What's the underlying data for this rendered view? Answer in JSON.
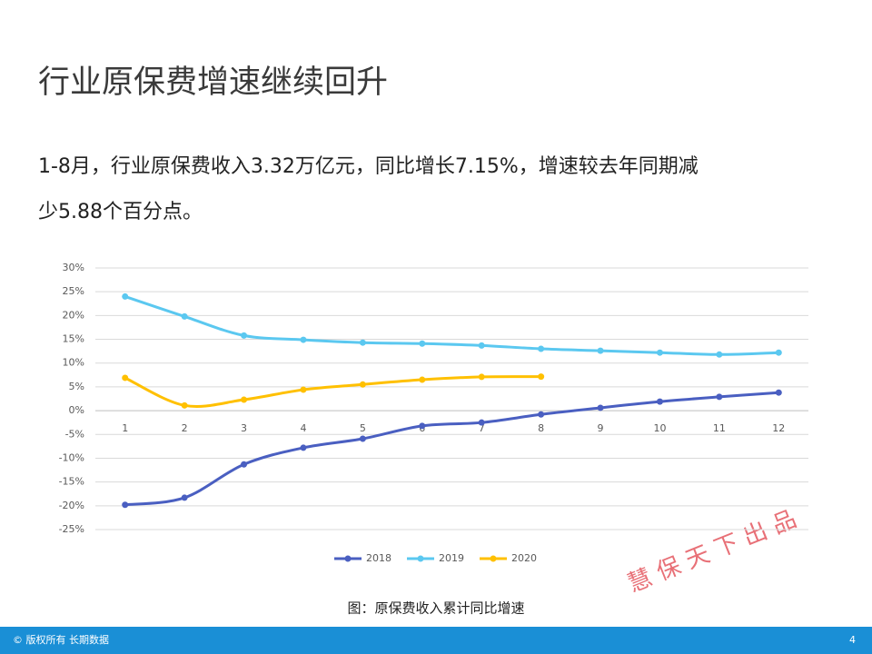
{
  "title": "行业原保费增速继续回升",
  "body": [
    "1-8月，行业原保费收入3.32万亿元，同比增长7.15%，增速较去年同期减",
    "少5.88个百分点。"
  ],
  "caption": "图：原保费收入累计同比增速",
  "footer": "© 版权所有 长期数据",
  "page_number": "4",
  "watermark": "慧 保 天 下 出 品",
  "chart_data": {
    "type": "line",
    "categories": [
      "1",
      "2",
      "3",
      "4",
      "5",
      "6",
      "7",
      "8",
      "9",
      "10",
      "11",
      "12"
    ],
    "series": [
      {
        "name": "2018",
        "color": "#4a5fc1",
        "values": [
          -19.8,
          -18.3,
          -11.3,
          -7.8,
          -5.9,
          -3.2,
          -2.5,
          -0.8,
          0.6,
          1.9,
          2.9,
          3.8
        ]
      },
      {
        "name": "2019",
        "color": "#5bc8f0",
        "values": [
          24.0,
          19.8,
          15.8,
          14.9,
          14.3,
          14.1,
          13.7,
          13.0,
          12.6,
          12.2,
          11.8,
          12.2
        ]
      },
      {
        "name": "2020",
        "color": "#ffc000",
        "values": [
          6.9,
          1.1,
          2.3,
          4.4,
          5.5,
          6.5,
          7.1,
          7.15,
          null,
          null,
          null,
          null
        ]
      }
    ],
    "ylim": [
      -25,
      30
    ],
    "yticks": [
      {
        "value": 30,
        "label": "30%"
      },
      {
        "value": 25,
        "label": "25%"
      },
      {
        "value": 20,
        "label": "20%"
      },
      {
        "value": 15,
        "label": "15%"
      },
      {
        "value": 10,
        "label": "10%"
      },
      {
        "value": 5,
        "label": "5%"
      },
      {
        "value": 0,
        "label": "0%"
      },
      {
        "value": -5,
        "label": "-5%"
      },
      {
        "value": -10,
        "label": "-10%"
      },
      {
        "value": -15,
        "label": "-15%"
      },
      {
        "value": -20,
        "label": "-20%"
      },
      {
        "value": -25,
        "label": "-25%"
      }
    ],
    "grid": true,
    "legend": "bottom"
  }
}
